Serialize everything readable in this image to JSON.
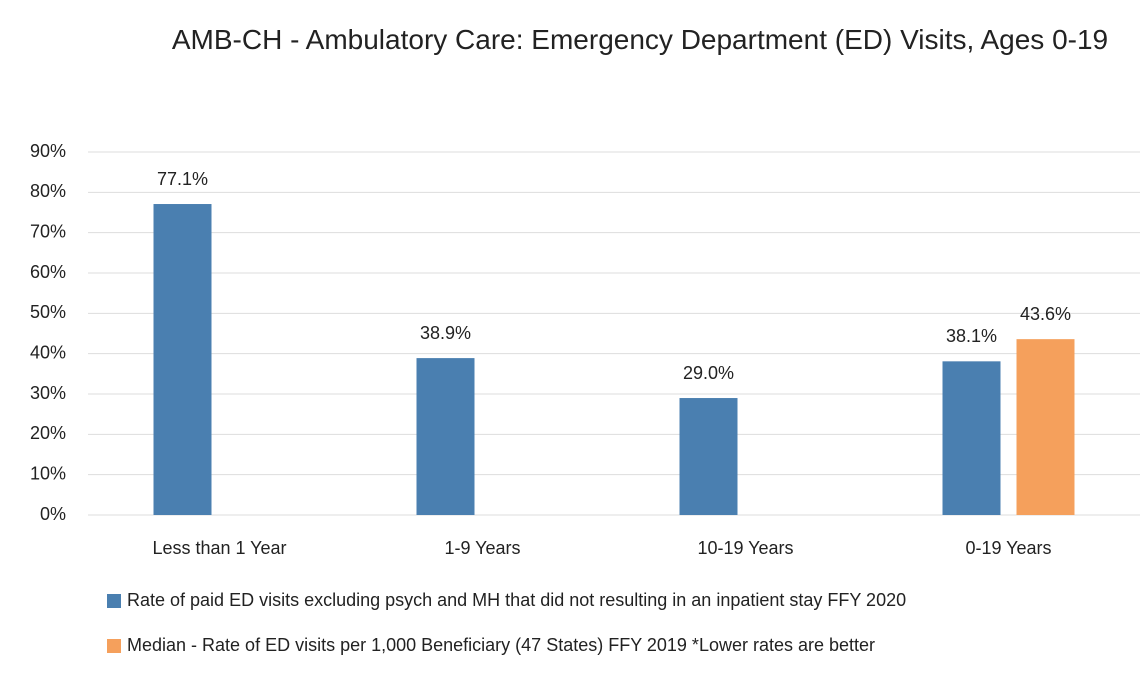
{
  "chart_data": {
    "type": "bar",
    "title": "AMB-CH - Ambulatory Care: Emergency Department (ED) Visits, Ages 0-19",
    "categories": [
      "Less than 1 Year",
      "1-9 Years",
      "10-19 Years",
      "0-19 Years"
    ],
    "series": [
      {
        "name": "Rate of paid ED visits excluding psych and MH that did not resulting in an inpatient stay FFY 2020",
        "color": "#4a7fb0",
        "values": [
          77.1,
          38.9,
          29.0,
          38.1
        ],
        "value_labels": [
          "77.1%",
          "38.9%",
          "29.0%",
          "38.1%"
        ]
      },
      {
        "name": "Median - Rate of ED visits per 1,000 Beneficiary (47 States) FFY 2019 *Lower rates are better",
        "color": "#f5a05c",
        "values": [
          null,
          null,
          null,
          43.6
        ],
        "value_labels": [
          null,
          null,
          null,
          "43.6%"
        ]
      }
    ],
    "ylim": [
      0,
      90
    ],
    "yticks": [
      {
        "value": 0,
        "label": "0%"
      },
      {
        "value": 10,
        "label": "10%"
      },
      {
        "value": 20,
        "label": "20%"
      },
      {
        "value": 30,
        "label": "30%"
      },
      {
        "value": 40,
        "label": "40%"
      },
      {
        "value": 50,
        "label": "50%"
      },
      {
        "value": 60,
        "label": "60%"
      },
      {
        "value": 70,
        "label": "70%"
      },
      {
        "value": 80,
        "label": "80%"
      },
      {
        "value": 90,
        "label": "90%"
      }
    ],
    "grid": true
  }
}
